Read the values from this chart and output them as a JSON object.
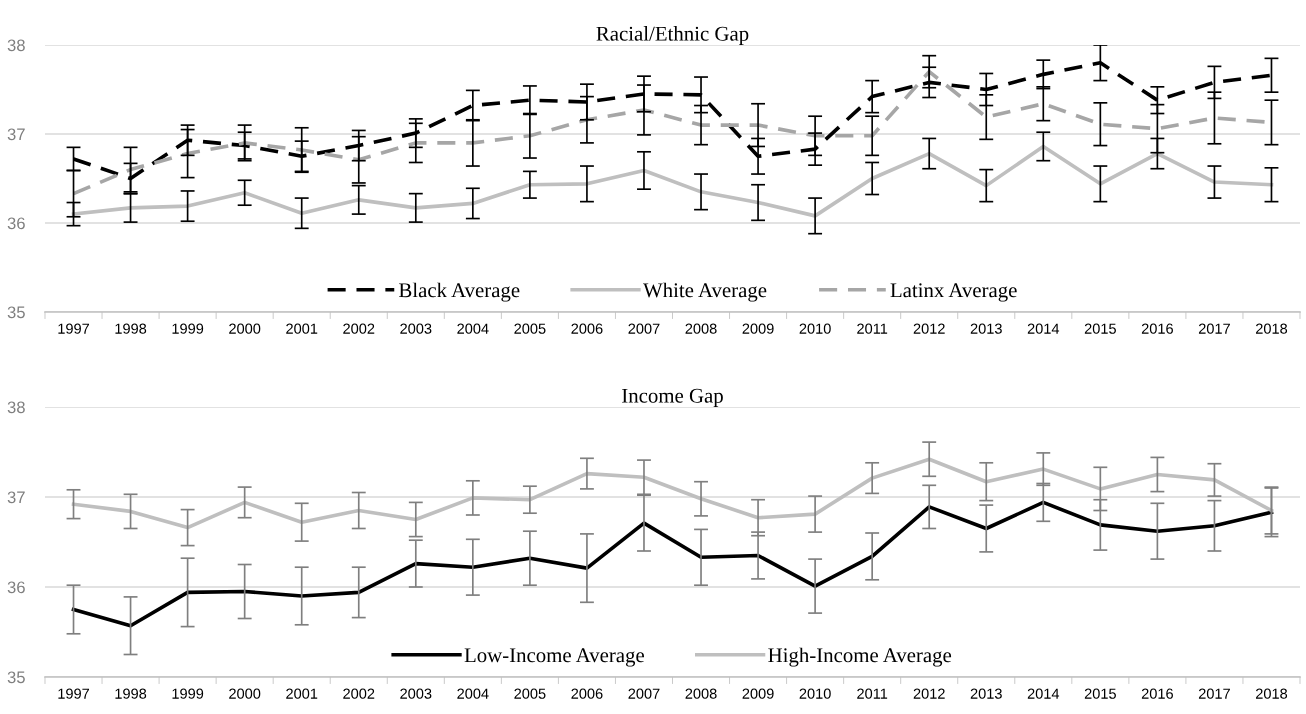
{
  "chart_data": [
    {
      "type": "line",
      "title": "Racial/Ethnic Gap",
      "categories": [
        "1997",
        "1998",
        "1999",
        "2000",
        "2001",
        "2002",
        "2003",
        "2004",
        "2005",
        "2006",
        "2007",
        "2008",
        "2009",
        "2010",
        "2011",
        "2012",
        "2013",
        "2014",
        "2015",
        "2016",
        "2017",
        "2018"
      ],
      "series": [
        {
          "name": "Black Average",
          "color": "#000000",
          "line_style": "dashed",
          "values": [
            36.72,
            36.5,
            36.93,
            36.87,
            36.75,
            36.87,
            37.01,
            37.32,
            37.38,
            37.36,
            37.45,
            37.44,
            36.75,
            36.83,
            37.42,
            37.58,
            37.5,
            37.67,
            37.8,
            37.38,
            37.58,
            37.66
          ],
          "errors": [
            0.13,
            0.17,
            0.17,
            0.15,
            0.17,
            0.17,
            0.16,
            0.17,
            0.16,
            0.2,
            0.2,
            0.2,
            0.2,
            0.18,
            0.18,
            0.17,
            0.18,
            0.16,
            0.2,
            0.15,
            0.18,
            0.19
          ]
        },
        {
          "name": "White Average",
          "color": "#bfbfbf",
          "line_style": "solid",
          "values": [
            36.1,
            36.17,
            36.19,
            36.34,
            36.11,
            36.26,
            36.17,
            36.22,
            36.43,
            36.44,
            36.59,
            36.35,
            36.23,
            36.08,
            36.5,
            36.78,
            36.42,
            36.86,
            36.44,
            36.78,
            36.46,
            36.43
          ],
          "errors": [
            0.13,
            0.16,
            0.17,
            0.14,
            0.17,
            0.16,
            0.16,
            0.17,
            0.15,
            0.2,
            0.21,
            0.2,
            0.2,
            0.2,
            0.18,
            0.17,
            0.18,
            0.16,
            0.2,
            0.17,
            0.18,
            0.19
          ]
        },
        {
          "name": "Latinx Average",
          "color": "#a6a6a6",
          "line_style": "dashed",
          "values": [
            36.33,
            36.6,
            36.78,
            36.9,
            36.82,
            36.71,
            36.9,
            36.9,
            36.98,
            37.16,
            37.27,
            37.1,
            37.1,
            36.98,
            36.98,
            37.7,
            37.19,
            37.34,
            37.11,
            37.06,
            37.18,
            37.13
          ],
          "errors": [
            0.26,
            0.25,
            0.27,
            0.2,
            0.25,
            0.26,
            0.22,
            0.26,
            0.25,
            0.26,
            0.28,
            0.22,
            0.24,
            0.22,
            0.22,
            0.18,
            0.25,
            0.19,
            0.24,
            0.27,
            0.29,
            0.25
          ]
        }
      ],
      "ylim": [
        35,
        38
      ],
      "yticks": [
        35,
        36,
        37,
        38
      ],
      "grid": "y",
      "legend": "bottom",
      "marker": "none"
    },
    {
      "type": "line",
      "title": "Income Gap",
      "categories": [
        "1997",
        "1998",
        "1999",
        "2000",
        "2001",
        "2002",
        "2003",
        "2004",
        "2005",
        "2006",
        "2007",
        "2008",
        "2009",
        "2010",
        "2011",
        "2012",
        "2013",
        "2014",
        "2015",
        "2016",
        "2017",
        "2018"
      ],
      "series": [
        {
          "name": "Low-Income Average",
          "color": "#000000",
          "line_style": "solid",
          "values": [
            35.75,
            35.57,
            35.94,
            35.95,
            35.9,
            35.94,
            36.26,
            36.22,
            36.32,
            36.21,
            36.71,
            36.33,
            36.35,
            36.01,
            36.34,
            36.89,
            36.65,
            36.94,
            36.69,
            36.62,
            36.68,
            36.83
          ],
          "errors": [
            0.27,
            0.32,
            0.38,
            0.3,
            0.32,
            0.28,
            0.26,
            0.31,
            0.3,
            0.38,
            0.31,
            0.31,
            0.26,
            0.3,
            0.26,
            0.24,
            0.26,
            0.21,
            0.28,
            0.31,
            0.28,
            0.27
          ]
        },
        {
          "name": "High-Income Average",
          "color": "#bfbfbf",
          "line_style": "solid",
          "values": [
            36.92,
            36.84,
            36.66,
            36.94,
            36.72,
            36.85,
            36.75,
            36.99,
            36.97,
            37.26,
            37.22,
            36.98,
            36.77,
            36.81,
            37.21,
            37.42,
            37.17,
            37.31,
            37.09,
            37.25,
            37.19,
            36.85
          ],
          "errors": [
            0.16,
            0.19,
            0.2,
            0.17,
            0.21,
            0.2,
            0.19,
            0.19,
            0.15,
            0.17,
            0.19,
            0.19,
            0.2,
            0.2,
            0.17,
            0.19,
            0.21,
            0.18,
            0.24,
            0.19,
            0.18,
            0.26
          ]
        }
      ],
      "ylim": [
        35,
        38
      ],
      "yticks": [
        35,
        36,
        37,
        38
      ],
      "grid": "y",
      "legend": "bottom",
      "marker": "none"
    }
  ]
}
